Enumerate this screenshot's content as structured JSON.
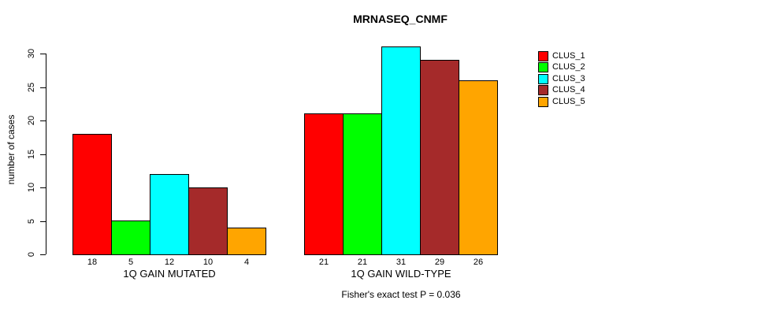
{
  "chart_data": {
    "type": "bar",
    "title": "MRNASEQ_CNMF",
    "ylabel": "number of cases",
    "xlabel": "",
    "yticks": [
      0,
      5,
      10,
      15,
      20,
      25,
      30
    ],
    "ylim": [
      0,
      31
    ],
    "grid": false,
    "legend_position": "right",
    "bar_value_labels_shown": true,
    "categories": [
      "1Q GAIN MUTATED",
      "1Q GAIN WILD-TYPE"
    ],
    "series": [
      {
        "name": "CLUS_1",
        "color": "#FF0000",
        "values": [
          18,
          21
        ]
      },
      {
        "name": "CLUS_2",
        "color": "#00FF00",
        "values": [
          5,
          21
        ]
      },
      {
        "name": "CLUS_3",
        "color": "#00FFFF",
        "values": [
          12,
          31
        ]
      },
      {
        "name": "CLUS_4",
        "color": "#A52A2A",
        "values": [
          10,
          29
        ]
      },
      {
        "name": "CLUS_5",
        "color": "#FFA500",
        "values": [
          4,
          26
        ]
      }
    ],
    "groups": [
      {
        "label": "1Q GAIN MUTATED",
        "values": [
          18,
          5,
          12,
          10,
          4
        ]
      },
      {
        "label": "1Q GAIN WILD-TYPE",
        "values": [
          21,
          21,
          31,
          29,
          26
        ]
      }
    ],
    "footnote": "Fisher's exact test P = 0.036"
  }
}
